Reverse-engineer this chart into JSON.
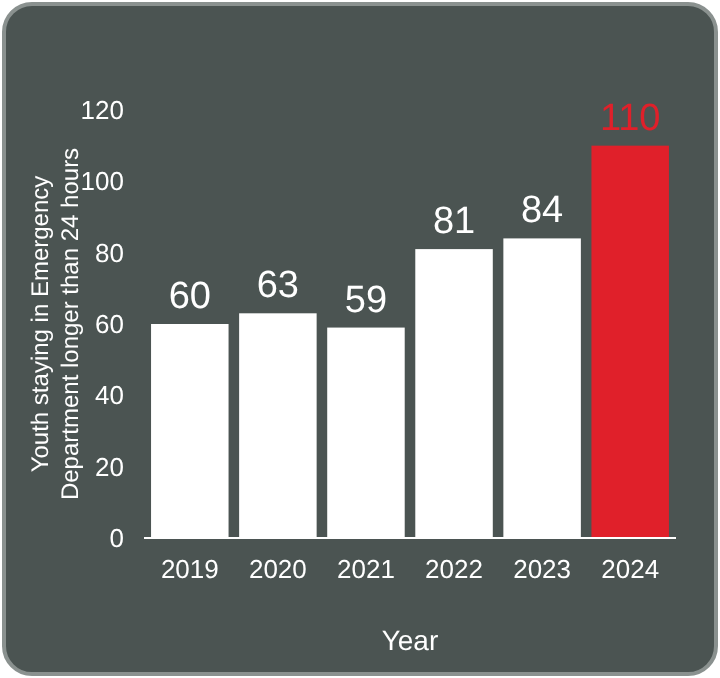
{
  "chart_data": {
    "type": "bar",
    "categories": [
      "2019",
      "2020",
      "2021",
      "2022",
      "2023",
      "2024"
    ],
    "values": [
      60,
      63,
      59,
      81,
      84,
      110
    ],
    "colors": [
      "#ffffff",
      "#ffffff",
      "#ffffff",
      "#ffffff",
      "#ffffff",
      "#e0202a"
    ],
    "ylim": [
      0,
      120
    ],
    "yticks": [
      0,
      20,
      40,
      60,
      80,
      100,
      120
    ],
    "ylabel": "Youth staying in Emergency Department longer than 24 hours",
    "xlabel": "Year",
    "data_labels": true,
    "grid": false
  }
}
